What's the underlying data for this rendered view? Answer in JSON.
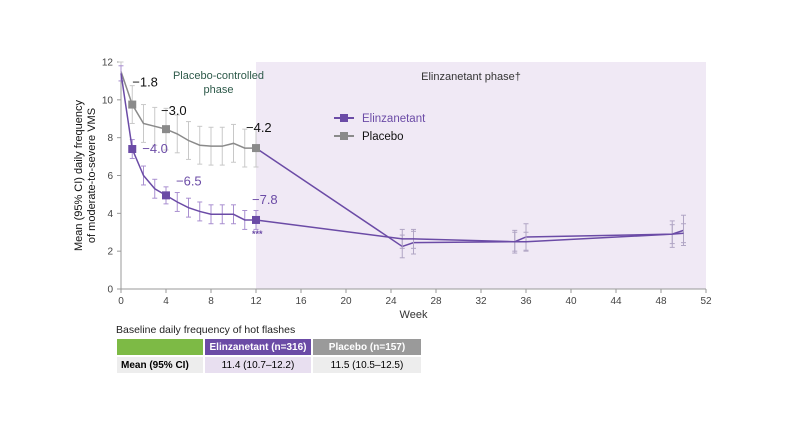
{
  "chart_data": {
    "type": "line",
    "xlabel": "Week",
    "ylabel": "Mean (95% CI) daily frequency of moderate-to-severe VMS",
    "xlim": [
      0,
      52
    ],
    "ylim": [
      0,
      12
    ],
    "xticks": [
      "0",
      "4",
      "8",
      "12",
      "16",
      "20",
      "24",
      "28",
      "32",
      "36",
      "40",
      "44",
      "48",
      "52"
    ],
    "yticks": [
      "0",
      "2",
      "4",
      "6",
      "8",
      "10",
      "12"
    ],
    "phases": [
      {
        "label": "Placebo-controlled phase",
        "start": 0,
        "end": 12
      },
      {
        "label": "Elinzanetant phase†",
        "start": 12,
        "end": 52
      }
    ],
    "series": [
      {
        "name": "Elinzanetant",
        "color": "#6b4ba6",
        "x": [
          0,
          1,
          2,
          3,
          4,
          5,
          6,
          7,
          8,
          9,
          10,
          11,
          12,
          25,
          26,
          35,
          36,
          49,
          50
        ],
        "y": [
          11.4,
          7.4,
          6.0,
          5.3,
          4.95,
          4.6,
          4.3,
          4.1,
          3.95,
          3.95,
          3.95,
          3.65,
          3.65,
          2.65,
          2.65,
          2.5,
          2.5,
          2.9,
          2.95
        ],
        "ci": [
          0.4,
          0.5,
          0.5,
          0.5,
          0.45,
          0.5,
          0.5,
          0.5,
          0.5,
          0.5,
          0.5,
          0.5,
          0.5,
          0.5,
          0.5,
          0.5,
          0.5,
          0.5,
          0.5
        ],
        "markers_at": [
          1,
          4,
          12
        ]
      },
      {
        "name": "Placebo",
        "color": "#8a8a8a",
        "switch_color": "#6b4ba6",
        "x": [
          0,
          1,
          2,
          3,
          4,
          5,
          6,
          7,
          8,
          9,
          10,
          11,
          12,
          25,
          26,
          35,
          36,
          49,
          50
        ],
        "y": [
          11.5,
          9.75,
          8.75,
          8.6,
          8.45,
          8.2,
          7.85,
          7.6,
          7.55,
          7.55,
          7.7,
          7.45,
          7.45,
          2.25,
          2.45,
          2.5,
          2.75,
          2.9,
          3.1
        ],
        "ci": [
          0.5,
          1.0,
          1.0,
          1.0,
          1.1,
          1.0,
          1.0,
          1.0,
          1.0,
          1.0,
          1.0,
          1.0,
          1.0,
          0.6,
          0.6,
          0.6,
          0.7,
          0.7,
          0.8
        ],
        "markers_at": [
          1,
          4,
          12
        ]
      }
    ],
    "annotations": [
      {
        "text": "−1.8",
        "series": "Placebo",
        "x": 1,
        "color": "#111"
      },
      {
        "text": "−3.0",
        "series": "Placebo",
        "x": 4,
        "color": "#111"
      },
      {
        "text": "−4.2",
        "series": "Placebo",
        "x": 12,
        "color": "#111"
      },
      {
        "text": "−4.0",
        "series": "Elinzanetant",
        "x": 1,
        "color": "#6b4ba6"
      },
      {
        "text": "−6.5",
        "series": "Elinzanetant",
        "x": 4,
        "color": "#6b4ba6"
      },
      {
        "text": "−7.8",
        "series": "Elinzanetant",
        "x": 12,
        "color": "#6b4ba6"
      },
      {
        "text": "***",
        "series": "Elinzanetant",
        "x": 12,
        "color": "#6b4ba6"
      }
    ],
    "legend": {
      "placement": "center",
      "entries": [
        "Elinzanetant",
        "Placebo"
      ]
    }
  },
  "table": {
    "caption": "Baseline daily frequency of hot flashes",
    "headers": [
      "",
      "Elinzanetant (n=316)",
      "Placebo (n=157)"
    ],
    "row_label": "Mean (95% CI)",
    "values": [
      "11.4 (10.7–12.2)",
      "11.5 (10.5–12.5)"
    ]
  },
  "colors": {
    "green": "#7dba45",
    "purple": "#6b4ba6",
    "grey": "#9a9a9a",
    "shade": "#f0e9f5",
    "light_purple": "#e8dff0",
    "light_grey": "#ededed"
  }
}
